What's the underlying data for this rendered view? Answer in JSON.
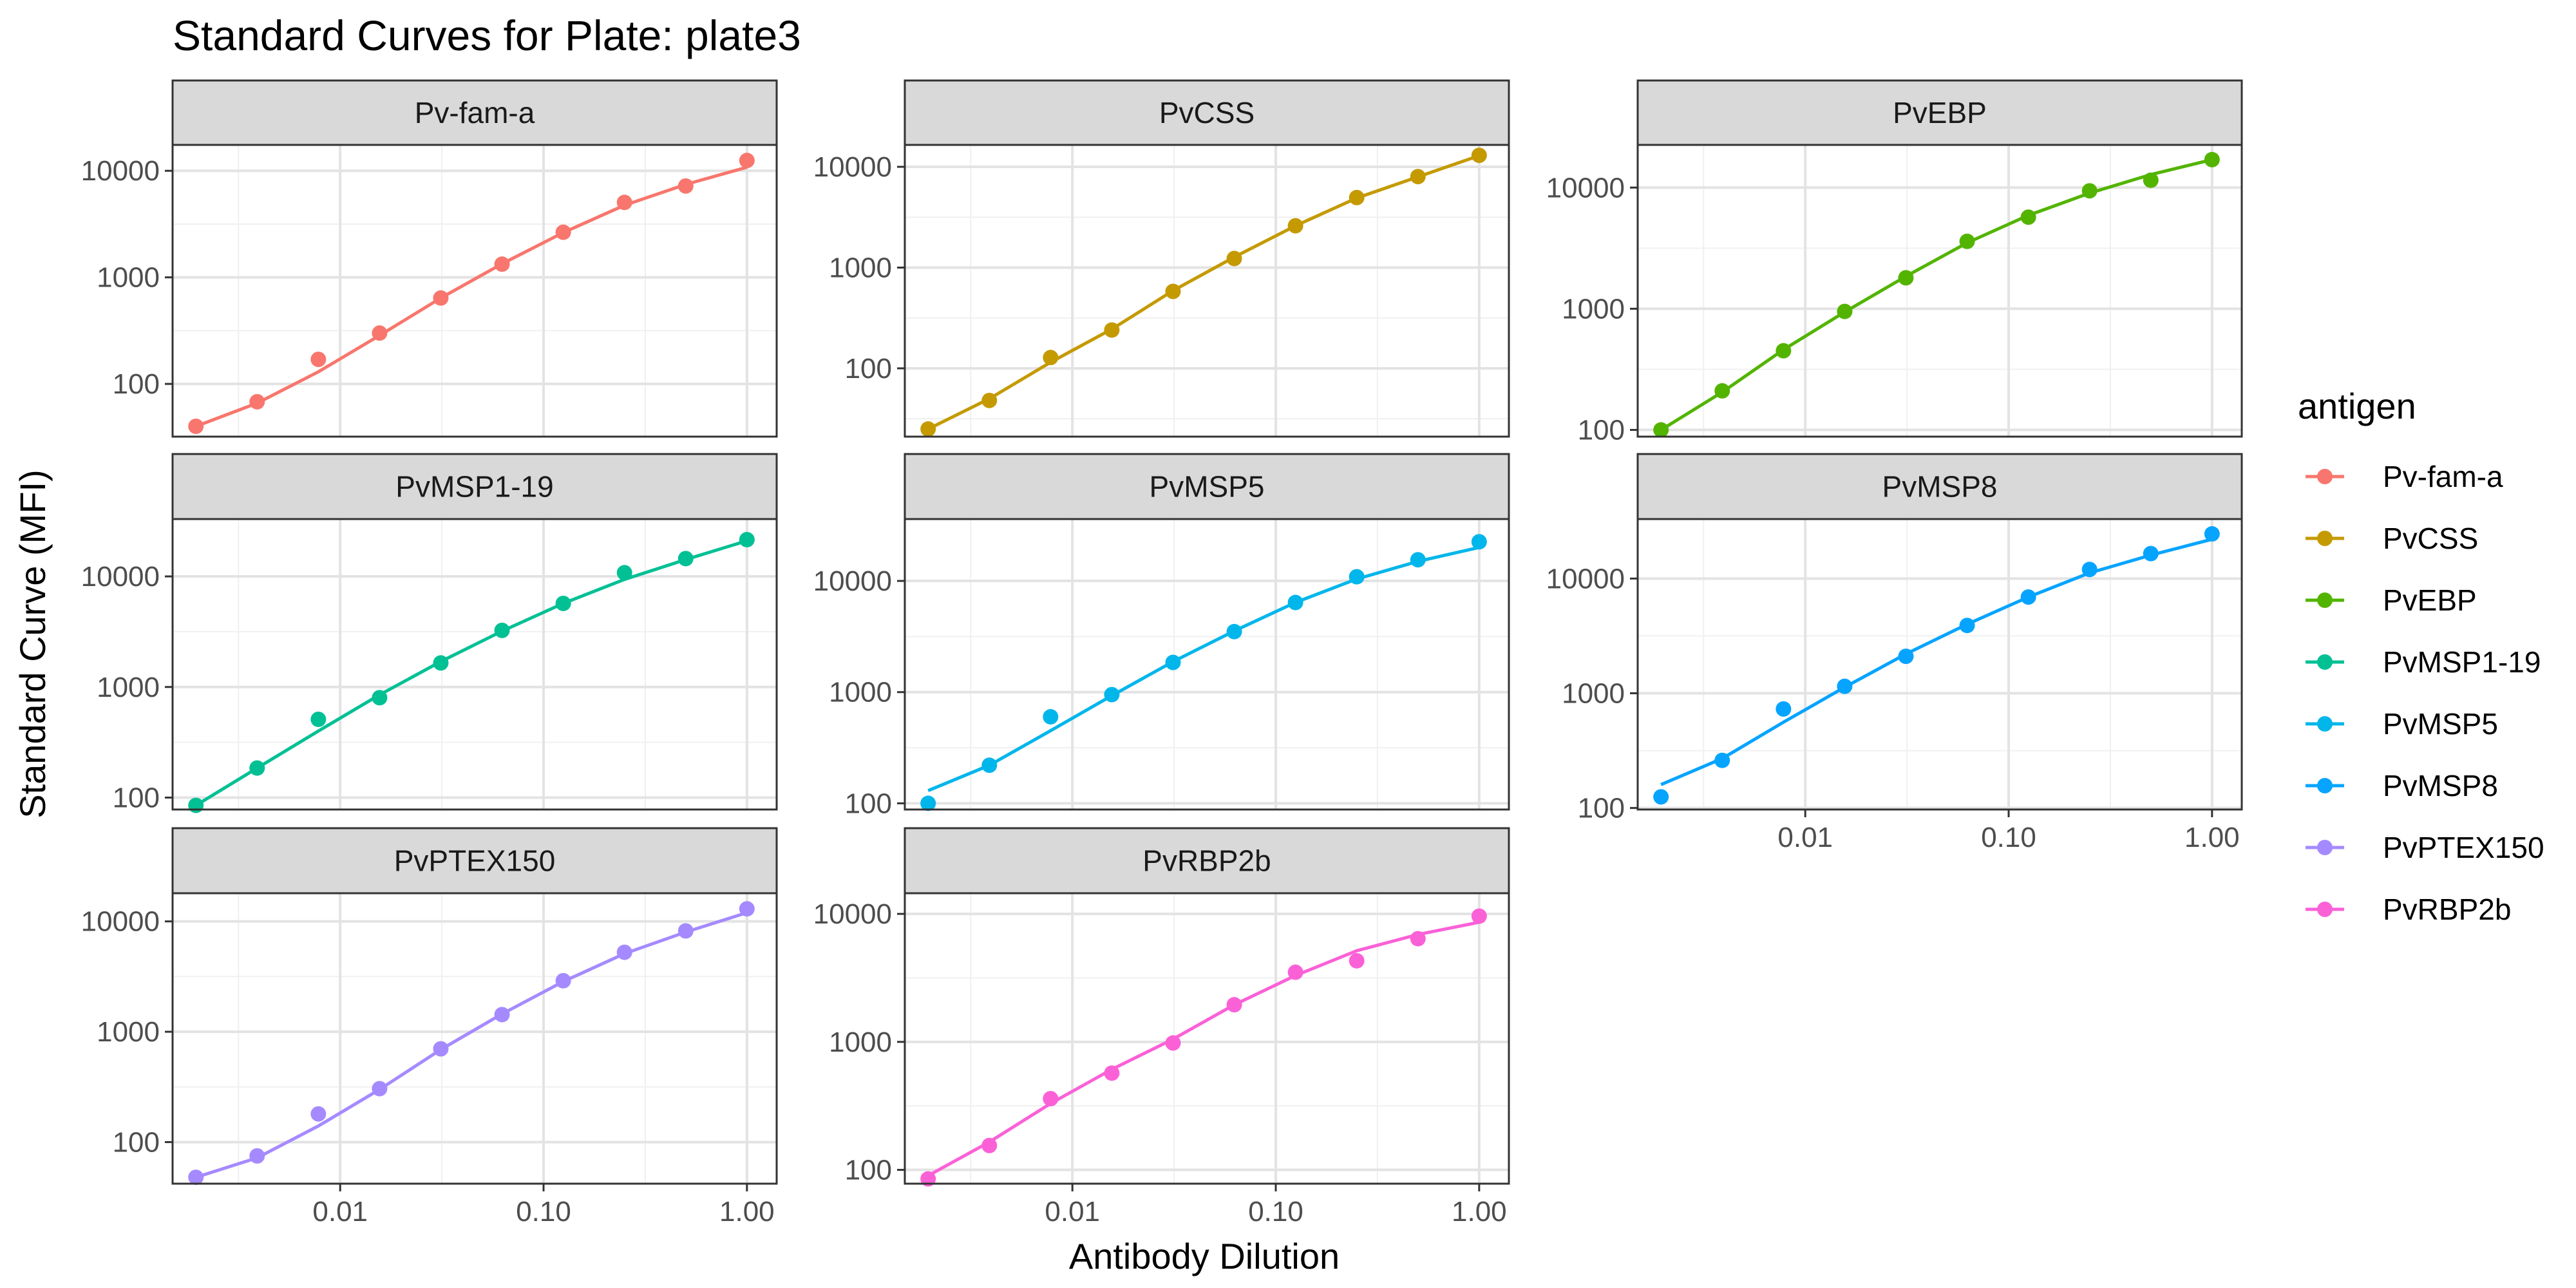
{
  "title": "Standard Curves for Plate: plate3",
  "chart_data": {
    "type": "scatter",
    "title": "Standard Curves for Plate: plate3",
    "xlabel": "Antibody Dilution",
    "ylabel": "Standard Curve (MFI)",
    "x_scale": "log10",
    "y_scale": "log10",
    "xlim": [
      0.0015,
      1.4
    ],
    "x_ticks": [
      0.01,
      0.1,
      1
    ],
    "x_tick_labels": [
      "0.01",
      "0.10",
      "1.00"
    ],
    "y_ticks": [
      100,
      1000,
      10000
    ],
    "y_tick_labels": [
      "100",
      "1000",
      "10000"
    ],
    "grid": true,
    "x": [
      0.001953,
      0.003906,
      0.007813,
      0.015625,
      0.03125,
      0.0625,
      0.125,
      0.25,
      0.5,
      1.0
    ],
    "legend": {
      "title": "antigen",
      "position": "right"
    },
    "facets": [
      {
        "name": "Pv-fam-a",
        "color": "#F8766D",
        "ylim": [
          32,
          17500
        ],
        "points": [
          40,
          68,
          170,
          300,
          640,
          1330,
          2650,
          5050,
          7200,
          12500
        ],
        "fit": [
          40,
          66,
          130,
          285,
          640,
          1340,
          2630,
          4750,
          7450,
          10800
        ]
      },
      {
        "name": "PvCSS",
        "color": "#C49A00",
        "ylim": [
          21,
          16500
        ],
        "points": [
          25,
          48,
          128,
          240,
          580,
          1230,
          2600,
          4950,
          8000,
          13000
        ],
        "fit": [
          25,
          50,
          115,
          245,
          590,
          1270,
          2600,
          4900,
          7950,
          12900
        ]
      },
      {
        "name": "PvEBP",
        "color": "#53B400",
        "ylim": [
          88,
          22500
        ],
        "points": [
          100,
          210,
          450,
          950,
          1800,
          3600,
          5700,
          9400,
          11500,
          17000
        ],
        "fit": [
          100,
          205,
          460,
          940,
          1850,
          3500,
          5900,
          9000,
          12800,
          17000
        ]
      },
      {
        "name": "PvMSP1-19",
        "color": "#00C094",
        "ylim": [
          78,
          33000
        ],
        "points": [
          85,
          185,
          510,
          800,
          1650,
          3250,
          5700,
          10800,
          14500,
          21500
        ],
        "fit": [
          85,
          185,
          400,
          850,
          1700,
          3200,
          5700,
          9400,
          14200,
          21000
        ]
      },
      {
        "name": "PvMSP5",
        "color": "#00B6EB",
        "ylim": [
          88,
          36000
        ],
        "points": [
          100,
          220,
          600,
          950,
          1850,
          3500,
          6400,
          10900,
          15500,
          22500
        ],
        "fit": [
          130,
          220,
          450,
          930,
          1880,
          3550,
          6400,
          10400,
          15000,
          20000
        ]
      },
      {
        "name": "PvMSP8",
        "color": "#06A4FF",
        "ylim": [
          97,
          33000
        ],
        "points": [
          125,
          260,
          730,
          1150,
          2100,
          3900,
          6900,
          12000,
          16500,
          24500
        ],
        "fit": [
          160,
          270,
          560,
          1130,
          2200,
          4000,
          6900,
          11200,
          16000,
          22000
        ]
      },
      {
        "name": "PvPTEX150",
        "color": "#A58AFF",
        "ylim": [
          42,
          18000
        ],
        "points": [
          48,
          75,
          180,
          305,
          700,
          1430,
          2900,
          5250,
          8200,
          13000
        ],
        "fit": [
          48,
          72,
          140,
          300,
          690,
          1450,
          2850,
          5100,
          8000,
          12000
        ]
      },
      {
        "name": "PvRBP2b",
        "color": "#FB61D7",
        "ylim": [
          78,
          14500
        ],
        "points": [
          85,
          155,
          360,
          570,
          980,
          1950,
          3500,
          4300,
          6400,
          9600
        ],
        "fit": [
          90,
          165,
          330,
          610,
          1050,
          1950,
          3300,
          5150,
          6900,
          8600
        ]
      }
    ]
  }
}
